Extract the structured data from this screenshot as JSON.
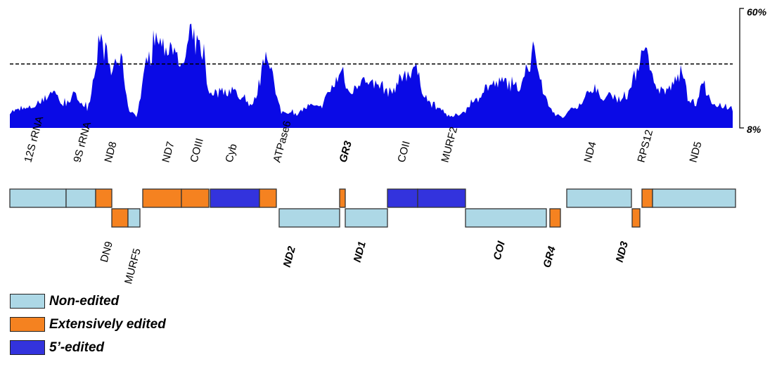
{
  "colors": {
    "coverage": "#0a0ae6",
    "non_edited": "#add8e6",
    "extensively_edited": "#f58220",
    "five_prime_edited": "#3333dd"
  },
  "coverage_scale": {
    "top_label": "60%",
    "bottom_label": "8%"
  },
  "legend": [
    {
      "key": "non_edited",
      "label": "Non-edited"
    },
    {
      "key": "extensively_edited",
      "label": "Extensively edited"
    },
    {
      "key": "five_prime_edited",
      "label": "5’-edited"
    }
  ],
  "genes": [
    {
      "name": "12S rRNA",
      "type": "non_edited",
      "row": "top"
    },
    {
      "name": "9S rRNA",
      "type": "non_edited",
      "row": "top"
    },
    {
      "name": "ND8",
      "type": "extensively_edited",
      "row": "top"
    },
    {
      "name": "DN9",
      "type": "extensively_edited",
      "row": "bottom"
    },
    {
      "name": "MURF5",
      "type": "non_edited",
      "row": "bottom"
    },
    {
      "name": "ND7",
      "type": "extensively_edited",
      "row": "top"
    },
    {
      "name": "COIII",
      "type": "extensively_edited",
      "row": "top"
    },
    {
      "name": "Cyb",
      "type": "five_prime_edited",
      "row": "top"
    },
    {
      "name": "ATPase6",
      "type": "extensively_edited",
      "row": "top"
    },
    {
      "name": "ND2",
      "type": "non_edited",
      "row": "bottom"
    },
    {
      "name": "GR3",
      "type": "extensively_edited",
      "row": "top"
    },
    {
      "name": "ND1",
      "type": "non_edited",
      "row": "bottom"
    },
    {
      "name": "COII",
      "type": "five_prime_edited",
      "row": "top"
    },
    {
      "name": "MURF2",
      "type": "five_prime_edited",
      "row": "top"
    },
    {
      "name": "COI",
      "type": "non_edited",
      "row": "bottom"
    },
    {
      "name": "GR4",
      "type": "extensively_edited",
      "row": "bottom"
    },
    {
      "name": "ND4",
      "type": "non_edited",
      "row": "top"
    },
    {
      "name": "ND3",
      "type": "extensively_edited",
      "row": "bottom"
    },
    {
      "name": "RPS12",
      "type": "extensively_edited",
      "row": "top"
    },
    {
      "name": "ND5",
      "type": "non_edited",
      "row": "top"
    }
  ]
}
